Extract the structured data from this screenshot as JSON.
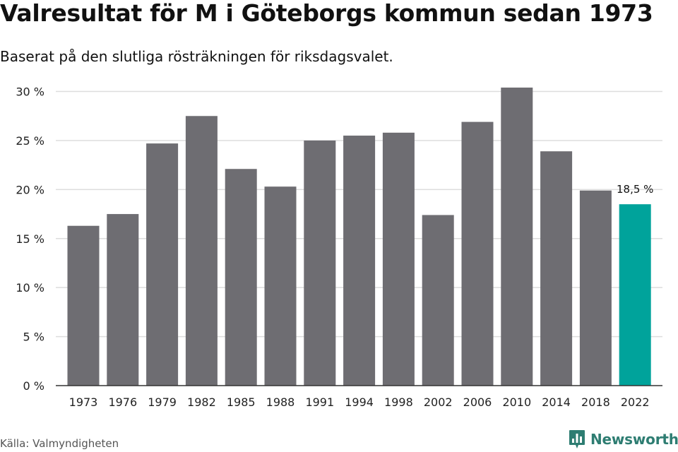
{
  "title": "Valresultat för M i Göteborgs kommun sedan 1973",
  "subtitle": "Baserat på den slutliga rösträkningen för riksdagsvalet.",
  "source": "Källa: Valmyndigheten",
  "brand": {
    "name": "Newsworthy",
    "logo_icon": "newsworthy-bar-chart-icon",
    "color": "#2e7d72"
  },
  "colors": {
    "bar": "#6e6d72",
    "highlight": "#00a39b",
    "grid": "#dddddd",
    "axis": "#333333"
  },
  "chart_data": {
    "type": "bar",
    "categories": [
      "1973",
      "1976",
      "1979",
      "1982",
      "1985",
      "1988",
      "1991",
      "1994",
      "1998",
      "2002",
      "2006",
      "2010",
      "2014",
      "2018",
      "2022"
    ],
    "values": [
      16.3,
      17.5,
      24.7,
      27.5,
      22.1,
      20.3,
      25.0,
      25.5,
      25.8,
      17.4,
      26.9,
      30.4,
      23.9,
      19.9,
      18.5
    ],
    "highlight_index": 14,
    "data_labels": [
      {
        "index": 14,
        "text": "18,5 %"
      }
    ],
    "yticks": [
      0,
      5,
      10,
      15,
      20,
      25,
      30
    ],
    "ytick_labels": [
      "0 %",
      "5 %",
      "10 %",
      "15 %",
      "20 %",
      "25 %",
      "30 %"
    ],
    "ylim": [
      0,
      30.4
    ],
    "grid": true,
    "xlabel": "",
    "ylabel": ""
  }
}
